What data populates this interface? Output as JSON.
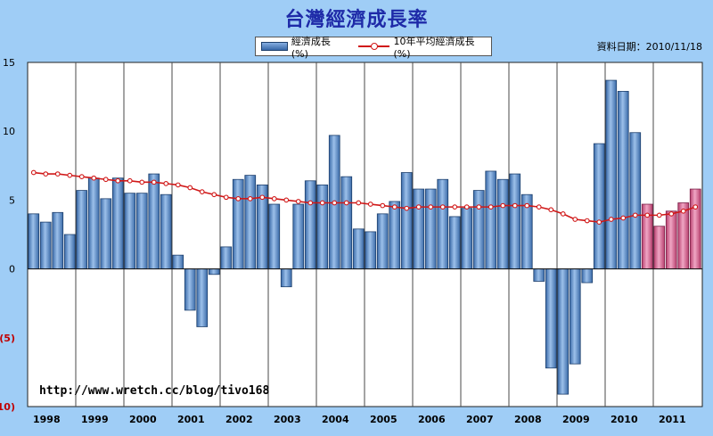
{
  "title": "台灣經濟成長率",
  "date_note": "資料日期：2010/11/18",
  "watermark": "http://www.wretch.cc/blog/tivo168",
  "legend": {
    "bar_label": "經濟成長(%)",
    "line_label": "10年平均經濟成長(%)"
  },
  "colors": {
    "background": "#9fcdf6",
    "plot_bg": "#ffffff",
    "actual_bar": "#4f80c0",
    "forecast_bar": "#d45c8c",
    "line": "#d01818",
    "title": "#1e2aa8",
    "negative_tick": "#c00000"
  },
  "chart_data": {
    "type": "bar",
    "title": "台灣經濟成長率",
    "ylim": [
      -10,
      15
    ],
    "y_ticks": [
      15,
      10,
      5,
      0,
      -5,
      -10
    ],
    "y_tick_labels": [
      "15",
      "10",
      "5",
      "0",
      "(5)",
      "(10)"
    ],
    "x_tick_labels": [
      "1998",
      "1999",
      "2000",
      "2001",
      "2002",
      "2003",
      "2004",
      "2005",
      "2006",
      "2007",
      "2008",
      "2009",
      "2010",
      "2011"
    ],
    "grid": "vertical-yearly",
    "legend_position": "top-center",
    "quarters": [
      "1998Q1",
      "1998Q2",
      "1998Q3",
      "1998Q4",
      "1999Q1",
      "1999Q2",
      "1999Q3",
      "1999Q4",
      "2000Q1",
      "2000Q2",
      "2000Q3",
      "2000Q4",
      "2001Q1",
      "2001Q2",
      "2001Q3",
      "2001Q4",
      "2002Q1",
      "2002Q2",
      "2002Q3",
      "2002Q4",
      "2003Q1",
      "2003Q2",
      "2003Q3",
      "2003Q4",
      "2004Q1",
      "2004Q2",
      "2004Q3",
      "2004Q4",
      "2005Q1",
      "2005Q2",
      "2005Q3",
      "2005Q4",
      "2006Q1",
      "2006Q2",
      "2006Q3",
      "2006Q4",
      "2007Q1",
      "2007Q2",
      "2007Q3",
      "2007Q4",
      "2008Q1",
      "2008Q2",
      "2008Q3",
      "2008Q4",
      "2009Q1",
      "2009Q2",
      "2009Q3",
      "2009Q4",
      "2010Q1",
      "2010Q2",
      "2010Q3",
      "2010Q4",
      "2011Q1",
      "2011Q2",
      "2011Q3",
      "2011Q4"
    ],
    "series": [
      {
        "name": "經濟成長(%)",
        "kind": "bar",
        "values": [
          4.0,
          3.4,
          4.1,
          2.5,
          5.7,
          6.6,
          5.1,
          6.6,
          5.5,
          5.5,
          6.9,
          5.4,
          1.0,
          -3.0,
          -4.2,
          -0.4,
          1.6,
          6.5,
          6.8,
          6.1,
          4.7,
          -1.3,
          4.7,
          6.4,
          6.1,
          9.7,
          6.7,
          2.9,
          2.7,
          4.0,
          4.9,
          7.0,
          5.8,
          5.8,
          6.5,
          3.8,
          4.4,
          5.7,
          7.1,
          6.5,
          6.9,
          5.4,
          -0.9,
          -7.2,
          -9.1,
          -6.9,
          -1.0,
          9.1,
          13.7,
          12.9,
          9.9,
          4.7,
          3.1,
          4.2,
          4.8,
          5.8
        ],
        "forecast_from_index": 51
      },
      {
        "name": "10年平均經濟成長(%)",
        "kind": "line",
        "values": [
          7.0,
          6.9,
          6.9,
          6.8,
          6.7,
          6.6,
          6.5,
          6.4,
          6.4,
          6.3,
          6.3,
          6.2,
          6.1,
          5.9,
          5.6,
          5.4,
          5.2,
          5.1,
          5.1,
          5.2,
          5.1,
          5.0,
          4.9,
          4.8,
          4.8,
          4.8,
          4.8,
          4.8,
          4.7,
          4.6,
          4.5,
          4.4,
          4.5,
          4.5,
          4.5,
          4.5,
          4.5,
          4.5,
          4.5,
          4.6,
          4.6,
          4.6,
          4.5,
          4.3,
          4.0,
          3.6,
          3.5,
          3.4,
          3.6,
          3.7,
          3.9,
          3.9,
          3.9,
          4.0,
          4.2,
          4.5
        ]
      }
    ]
  }
}
